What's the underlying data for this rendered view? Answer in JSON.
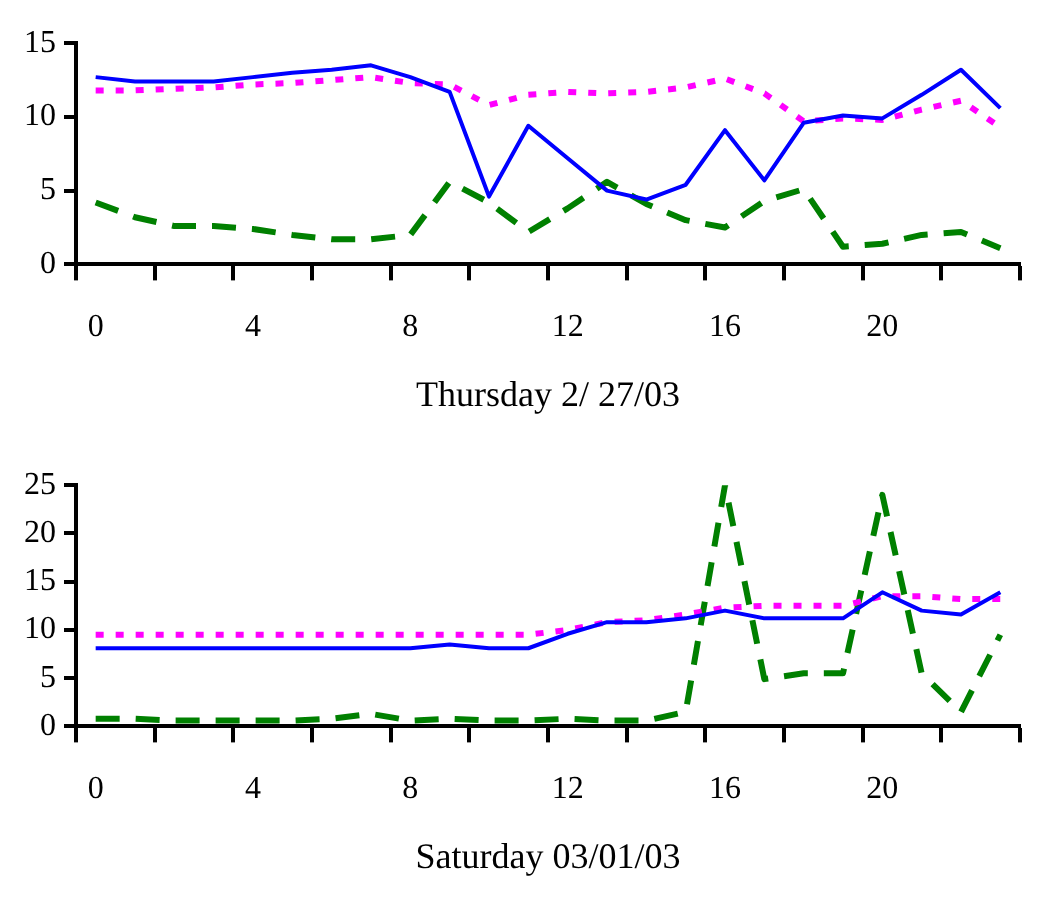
{
  "chart_data": [
    {
      "type": "line",
      "xlabel": "Thursday 2/ 27/03",
      "x": [
        0,
        1,
        2,
        3,
        4,
        5,
        6,
        7,
        8,
        9,
        10,
        11,
        12,
        13,
        14,
        15,
        16,
        17,
        18,
        19,
        20,
        21,
        22,
        23
      ],
      "xlim": [
        -0.5,
        23.5
      ],
      "xticks": [
        0,
        4,
        8,
        12,
        16,
        20,
        {
          "value": -0.5,
          "label": null
        },
        {
          "value": 1.5,
          "label": null
        },
        {
          "value": 3.5,
          "label": null
        },
        {
          "value": 5.5,
          "label": null
        },
        {
          "value": 7.5,
          "label": null
        },
        {
          "value": 9.5,
          "label": null
        },
        {
          "value": 11.5,
          "label": null
        },
        {
          "value": 13.5,
          "label": null
        },
        {
          "value": 15.5,
          "label": null
        },
        {
          "value": 17.5,
          "label": null
        },
        {
          "value": 19.5,
          "label": null
        },
        {
          "value": 21.5,
          "label": null
        },
        {
          "value": 23.5,
          "label": null
        }
      ],
      "ylim": [
        0,
        15
      ],
      "yticks": [
        0,
        5,
        10,
        15
      ],
      "grid": false,
      "legend": false,
      "marker": "none",
      "series": [
        {
          "color": "#0000ff",
          "line_style": "solid",
          "values": [
            12.7,
            12.4,
            12.4,
            12.4,
            12.7,
            13.0,
            13.2,
            13.5,
            12.7,
            11.7,
            4.6,
            9.4,
            7.2,
            5.0,
            4.4,
            5.4,
            9.1,
            5.7,
            9.6,
            10.1,
            9.9,
            11.5,
            13.2,
            10.6
          ]
        },
        {
          "color": "#ff00ff",
          "line_style": "dotted",
          "values": [
            11.8,
            11.8,
            11.9,
            12.0,
            12.2,
            12.3,
            12.5,
            12.7,
            12.3,
            12.2,
            10.8,
            11.5,
            11.7,
            11.6,
            11.7,
            12.0,
            12.6,
            11.6,
            9.7,
            9.9,
            9.8,
            10.5,
            11.1,
            9.3
          ]
        },
        {
          "color": "#008000",
          "line_style": "dashed",
          "values": [
            4.2,
            3.2,
            2.6,
            2.6,
            2.4,
            2.0,
            1.7,
            1.7,
            2.0,
            5.6,
            4.2,
            2.2,
            3.8,
            5.6,
            4.1,
            3.0,
            2.5,
            4.3,
            5.1,
            1.2,
            1.4,
            2.0,
            2.2,
            1.1
          ]
        }
      ]
    },
    {
      "type": "line",
      "xlabel": "Saturday 03/01/03",
      "x": [
        0,
        1,
        2,
        3,
        4,
        5,
        6,
        7,
        8,
        9,
        10,
        11,
        12,
        13,
        14,
        15,
        16,
        17,
        18,
        19,
        20,
        21,
        22,
        23
      ],
      "xlim": [
        -0.5,
        23.5
      ],
      "xticks": [
        0,
        4,
        8,
        12,
        16,
        20,
        {
          "value": -0.5,
          "label": null
        },
        {
          "value": 1.5,
          "label": null
        },
        {
          "value": 3.5,
          "label": null
        },
        {
          "value": 5.5,
          "label": null
        },
        {
          "value": 7.5,
          "label": null
        },
        {
          "value": 9.5,
          "label": null
        },
        {
          "value": 11.5,
          "label": null
        },
        {
          "value": 13.5,
          "label": null
        },
        {
          "value": 15.5,
          "label": null
        },
        {
          "value": 17.5,
          "label": null
        },
        {
          "value": 19.5,
          "label": null
        },
        {
          "value": 21.5,
          "label": null
        },
        {
          "value": 23.5,
          "label": null
        }
      ],
      "ylim": [
        0,
        25
      ],
      "yticks": [
        0,
        5,
        10,
        15,
        20,
        25
      ],
      "grid": false,
      "legend": false,
      "marker": "none",
      "series": [
        {
          "color": "#0000ff",
          "line_style": "solid",
          "values": [
            8.1,
            8.1,
            8.1,
            8.1,
            8.1,
            8.1,
            8.1,
            8.1,
            8.1,
            8.5,
            8.1,
            8.1,
            9.6,
            10.8,
            10.8,
            11.2,
            12.0,
            11.2,
            11.2,
            11.2,
            13.9,
            12.0,
            11.6,
            13.9
          ]
        },
        {
          "color": "#ff00ff",
          "line_style": "dotted",
          "values": [
            9.5,
            9.5,
            9.5,
            9.5,
            9.5,
            9.5,
            9.5,
            9.5,
            9.5,
            9.5,
            9.5,
            9.5,
            10.0,
            10.8,
            11.0,
            11.6,
            12.3,
            12.5,
            12.5,
            12.5,
            13.5,
            13.5,
            13.2,
            13.2
          ]
        },
        {
          "color": "#008000",
          "line_style": "dashed",
          "values": [
            0.8,
            0.8,
            0.6,
            0.6,
            0.6,
            0.6,
            0.8,
            1.3,
            0.6,
            0.8,
            0.6,
            0.6,
            0.8,
            0.6,
            0.6,
            1.5,
            25,
            4.9,
            5.5,
            5.5,
            24.0,
            5.5,
            1.5,
            9.5
          ]
        }
      ]
    }
  ]
}
